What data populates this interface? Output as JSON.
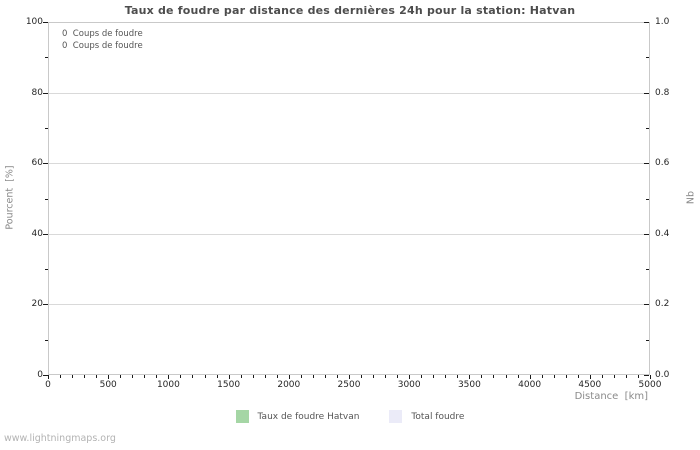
{
  "title": "Taux de foudre par distance des dernières 24h pour la station: Hatvan",
  "watermark": "www.lightningmaps.org",
  "annotations": [
    "0  Coups de foudre",
    "0  Coups de foudre"
  ],
  "legend": [
    {
      "label": "Taux de foudre Hatvan",
      "color": "#a5d6a5"
    },
    {
      "label": "Total foudre",
      "color": "#ebebf8"
    }
  ],
  "chart_data": {
    "type": "bar",
    "title": "Taux de foudre par distance des dernières 24h pour la station: Hatvan",
    "xlabel": "Distance  [km]",
    "ylabel_left": "Pourcent  [%]",
    "ylabel_right": "Nb",
    "xlim": [
      0,
      5000
    ],
    "x_major_ticks": [
      0,
      500,
      1000,
      1500,
      2000,
      2500,
      3000,
      3500,
      4000,
      4500,
      5000
    ],
    "x_minor_step": 100,
    "ylim_left": [
      0,
      100
    ],
    "y_major_ticks_left": [
      0,
      20,
      40,
      60,
      80,
      100
    ],
    "y_minor_step_left": 10,
    "ylim_right": [
      0.0,
      1.0
    ],
    "y_major_tick_labels_right": [
      "0.0",
      "0.2",
      "0.4",
      "0.6",
      "0.8",
      "1.0"
    ],
    "grid": "horizontal-major-only",
    "legend_position": "bottom-center",
    "strike_counts": [
      0,
      0
    ],
    "series": [
      {
        "name": "Taux de foudre Hatvan",
        "color": "#a5d6a5",
        "values": []
      },
      {
        "name": "Total foudre",
        "color": "#ebebf8",
        "values": []
      }
    ],
    "colors": {
      "grid": "#d9d9d9",
      "frame": "#c9c9c9",
      "tick": "#1a1a1a",
      "title_text": "#4d4d4d",
      "axis_title_text": "#8a8a8a",
      "tick_label_text": "#262626",
      "annotation_text": "#555555",
      "watermark_text": "#b3b3b3"
    }
  }
}
